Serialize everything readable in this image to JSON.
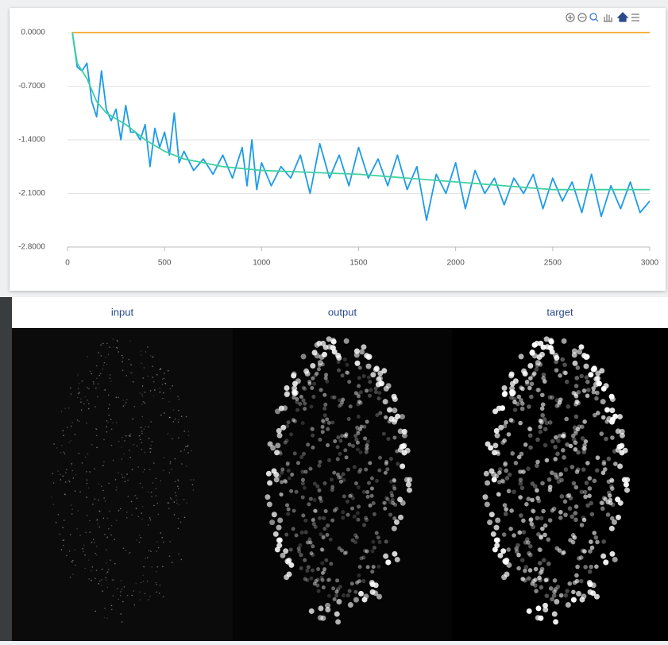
{
  "chart_data": {
    "type": "line",
    "xlim": [
      0,
      3000
    ],
    "ylim": [
      -2.8,
      0
    ],
    "xticks": [
      0,
      500,
      1000,
      1500,
      2000,
      2500,
      3000
    ],
    "yticks": [
      {
        "value": 0,
        "label": "0.0000"
      },
      {
        "value": -0.7,
        "label": "-0.7000"
      },
      {
        "value": -1.4,
        "label": "-1.4000"
      },
      {
        "value": -2.1,
        "label": "-2.1000"
      },
      {
        "value": -2.8,
        "label": "-2.8000"
      }
    ],
    "grid": true,
    "series": [
      {
        "color": "#f5a623",
        "x": [
          25,
          3000
        ],
        "values": [
          0,
          0
        ]
      },
      {
        "color": "#1e9be8",
        "x": [
          25,
          50,
          75,
          100,
          125,
          150,
          175,
          200,
          225,
          250,
          275,
          300,
          325,
          350,
          375,
          400,
          425,
          450,
          475,
          500,
          525,
          550,
          575,
          600,
          650,
          700,
          750,
          800,
          850,
          900,
          925,
          950,
          975,
          1000,
          1050,
          1100,
          1150,
          1200,
          1250,
          1300,
          1350,
          1400,
          1450,
          1500,
          1550,
          1600,
          1650,
          1700,
          1750,
          1800,
          1850,
          1900,
          1950,
          2000,
          2050,
          2100,
          2150,
          2200,
          2250,
          2300,
          2350,
          2400,
          2450,
          2500,
          2550,
          2600,
          2650,
          2700,
          2750,
          2800,
          2850,
          2900,
          2950,
          3000
        ],
        "values": [
          0,
          -0.45,
          -0.5,
          -0.4,
          -0.9,
          -1.1,
          -0.5,
          -1.0,
          -1.15,
          -1.0,
          -1.4,
          -0.95,
          -1.3,
          -1.3,
          -1.4,
          -1.2,
          -1.75,
          -1.25,
          -1.5,
          -1.3,
          -1.6,
          -1.05,
          -1.7,
          -1.55,
          -1.8,
          -1.65,
          -1.85,
          -1.6,
          -1.9,
          -1.5,
          -2.0,
          -1.4,
          -2.05,
          -1.7,
          -2.0,
          -1.75,
          -1.9,
          -1.6,
          -2.1,
          -1.45,
          -1.9,
          -1.6,
          -2.0,
          -1.5,
          -1.9,
          -1.65,
          -2.0,
          -1.6,
          -2.05,
          -1.75,
          -2.45,
          -1.85,
          -2.1,
          -1.7,
          -2.3,
          -1.8,
          -2.1,
          -1.9,
          -2.25,
          -1.9,
          -2.1,
          -1.85,
          -2.3,
          -1.9,
          -2.2,
          -1.95,
          -2.35,
          -1.85,
          -2.4,
          -2.0,
          -2.3,
          -1.95,
          -2.35,
          -2.2
        ]
      },
      {
        "color": "#3fd0a0",
        "x": [
          25,
          50,
          100,
          150,
          200,
          300,
          400,
          500,
          600,
          800,
          1000,
          1500,
          2000,
          2500,
          3000
        ],
        "values": [
          0,
          -0.4,
          -0.6,
          -0.9,
          -1.05,
          -1.2,
          -1.4,
          -1.55,
          -1.65,
          -1.75,
          -1.8,
          -1.85,
          -1.95,
          -2.05,
          -2.05
        ]
      }
    ]
  },
  "panels": {
    "titles": [
      "input",
      "output",
      "target"
    ]
  }
}
